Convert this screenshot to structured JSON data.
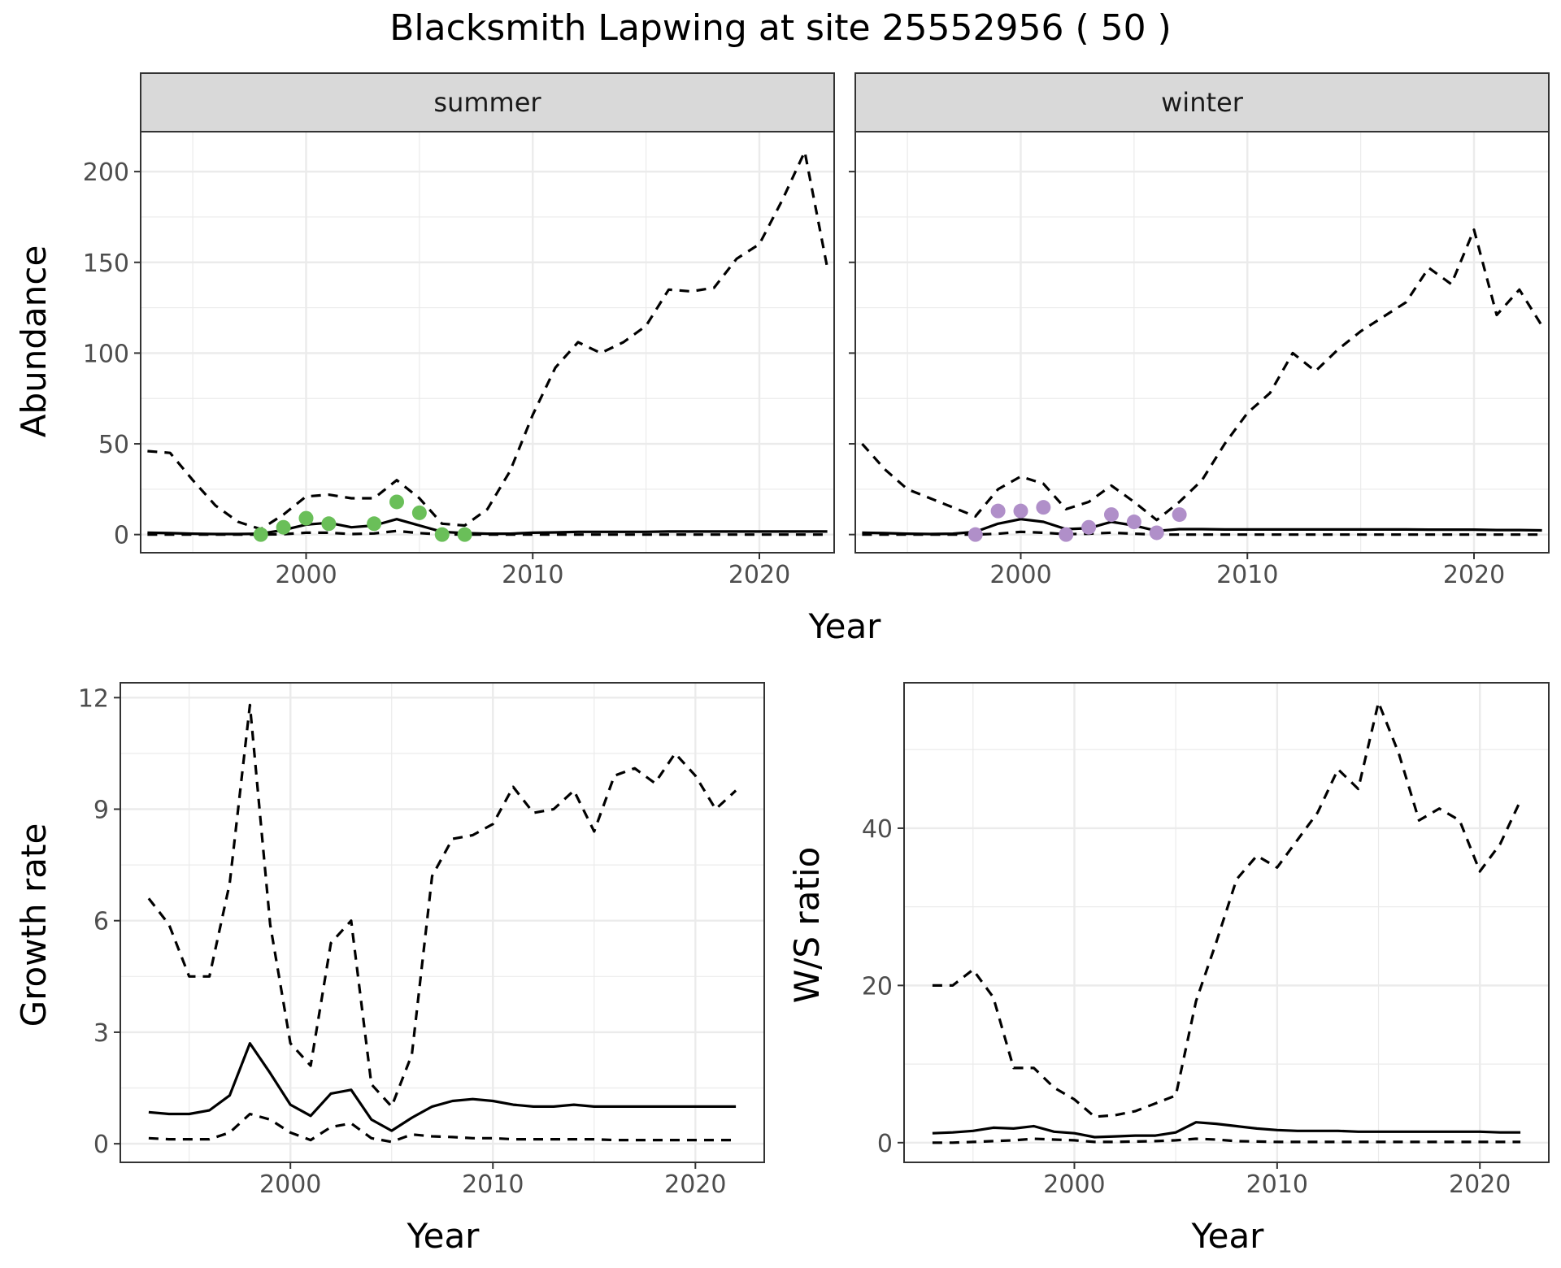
{
  "title": "Blacksmith Lapwing at site 25552956 ( 50 )",
  "colors": {
    "summer_points": "#6ABF59",
    "winter_points": "#B08FC9",
    "lines": "#000000",
    "grid": "#ebebeb",
    "strip": "#d9d9d9"
  },
  "chart_data": [
    {
      "type": "line",
      "panel": "summer",
      "facet_label": "summer",
      "xlabel": "Year",
      "ylabel": "Abundance",
      "xlim": [
        1992.7,
        2023.3
      ],
      "ylim": [
        -10,
        222
      ],
      "xticks": [
        2000,
        2010,
        2020
      ],
      "yticks": [
        0,
        50,
        100,
        150,
        200
      ],
      "grid": true,
      "series": [
        {
          "role": "mean",
          "style": "solid",
          "x": [
            1993,
            1994,
            1995,
            1996,
            1997,
            1998,
            1999,
            2000,
            2001,
            2002,
            2003,
            2004,
            2005,
            2006,
            2007,
            2008,
            2009,
            2010,
            2011,
            2012,
            2013,
            2014,
            2015,
            2016,
            2017,
            2018,
            2019,
            2020,
            2021,
            2022,
            2023
          ],
          "values": [
            1,
            0.8,
            0.5,
            0.3,
            0.3,
            0.5,
            2.5,
            5.5,
            6.5,
            4,
            5,
            8.5,
            5,
            1.5,
            0.8,
            0.5,
            0.5,
            1,
            1.2,
            1.5,
            1.5,
            1.5,
            1.5,
            1.7,
            1.7,
            1.7,
            1.7,
            1.7,
            1.7,
            1.7,
            1.7
          ]
        },
        {
          "role": "upper",
          "style": "dashed",
          "x": [
            1993,
            1994,
            1995,
            1996,
            1997,
            1998,
            1999,
            2000,
            2001,
            2002,
            2003,
            2004,
            2005,
            2006,
            2007,
            2008,
            2009,
            2010,
            2011,
            2012,
            2013,
            2014,
            2015,
            2016,
            2017,
            2018,
            2019,
            2020,
            2021,
            2022,
            2023
          ],
          "values": [
            46,
            45,
            30,
            16,
            7,
            3,
            11,
            21,
            22,
            20,
            20,
            30,
            20,
            6,
            5,
            14,
            35,
            66,
            92,
            106,
            100,
            106,
            115,
            135,
            134,
            136,
            152,
            160,
            184,
            211,
            147
          ]
        },
        {
          "role": "lower",
          "style": "dashed",
          "x": [
            1993,
            1994,
            1995,
            1996,
            1997,
            1998,
            1999,
            2000,
            2001,
            2002,
            2003,
            2004,
            2005,
            2006,
            2007,
            2008,
            2009,
            2010,
            2011,
            2012,
            2013,
            2014,
            2015,
            2016,
            2017,
            2018,
            2019,
            2020,
            2021,
            2022,
            2023
          ],
          "values": [
            0,
            0,
            0,
            0,
            0,
            0,
            0.2,
            1,
            1,
            0.3,
            0.6,
            2,
            0.8,
            0.1,
            0,
            0,
            0,
            0,
            0,
            0,
            0,
            0,
            0,
            0,
            0,
            0,
            0,
            0,
            0,
            0,
            0
          ]
        }
      ],
      "points": {
        "x": [
          1998,
          1999,
          2000,
          2001,
          2003,
          2004,
          2005,
          2006,
          2007
        ],
        "values": [
          0,
          4,
          9,
          6,
          6,
          18,
          12,
          0,
          0
        ]
      }
    },
    {
      "type": "line",
      "panel": "winter",
      "facet_label": "winter",
      "xlabel": "Year",
      "ylabel": "",
      "xlim": [
        1992.7,
        2023.3
      ],
      "ylim": [
        -10,
        222
      ],
      "xticks": [
        2000,
        2010,
        2020
      ],
      "yticks": [
        0,
        50,
        100,
        150,
        200
      ],
      "grid": true,
      "series": [
        {
          "role": "mean",
          "style": "solid",
          "x": [
            1993,
            1994,
            1995,
            1996,
            1997,
            1998,
            1999,
            2000,
            2001,
            2002,
            2003,
            2004,
            2005,
            2006,
            2007,
            2008,
            2009,
            2010,
            2011,
            2012,
            2013,
            2014,
            2015,
            2016,
            2017,
            2018,
            2019,
            2020,
            2021,
            2022,
            2023
          ],
          "values": [
            1,
            0.8,
            0.5,
            0.3,
            0.5,
            1.5,
            6,
            8.5,
            7,
            3,
            3.5,
            7,
            5,
            2,
            3,
            3,
            2.8,
            2.8,
            2.8,
            2.8,
            2.8,
            2.8,
            2.8,
            2.8,
            2.8,
            2.7,
            2.7,
            2.7,
            2.5,
            2.5,
            2.3
          ]
        },
        {
          "role": "upper",
          "style": "dashed",
          "x": [
            1993,
            1994,
            1995,
            1996,
            1997,
            1998,
            1999,
            2000,
            2001,
            2002,
            2003,
            2004,
            2005,
            2006,
            2007,
            2008,
            2009,
            2010,
            2011,
            2012,
            2013,
            2014,
            2015,
            2016,
            2017,
            2018,
            2019,
            2020,
            2021,
            2022,
            2023
          ],
          "values": [
            50,
            36,
            25,
            20,
            15,
            10,
            25,
            32,
            28,
            14,
            18,
            27,
            18,
            8,
            18,
            30,
            50,
            67,
            78,
            100,
            90,
            102,
            112,
            120,
            128,
            147,
            138,
            168,
            121,
            135,
            115
          ]
        },
        {
          "role": "lower",
          "style": "dashed",
          "x": [
            1993,
            1994,
            1995,
            1996,
            1997,
            1998,
            1999,
            2000,
            2001,
            2002,
            2003,
            2004,
            2005,
            2006,
            2007,
            2008,
            2009,
            2010,
            2011,
            2012,
            2013,
            2014,
            2015,
            2016,
            2017,
            2018,
            2019,
            2020,
            2021,
            2022,
            2023
          ],
          "values": [
            0,
            0,
            0,
            0,
            0,
            0,
            0.5,
            1.5,
            1,
            0.2,
            0.5,
            1,
            0.5,
            0,
            0,
            0,
            0,
            0,
            0,
            0,
            0,
            0,
            0,
            0,
            0,
            0,
            0,
            0,
            0,
            0,
            0
          ]
        }
      ],
      "points": {
        "x": [
          1998,
          1999,
          2000,
          2001,
          2002,
          2003,
          2004,
          2005,
          2006,
          2007
        ],
        "values": [
          0,
          13,
          13,
          15,
          0,
          4,
          11,
          7,
          1,
          11
        ]
      }
    },
    {
      "type": "line",
      "panel": "growth",
      "xlabel": "Year",
      "ylabel": "Growth rate",
      "xlim": [
        1991.6,
        2023.4
      ],
      "ylim": [
        -0.5,
        12.4
      ],
      "xticks": [
        2000,
        2010,
        2020
      ],
      "yticks": [
        0,
        3,
        6,
        9,
        12
      ],
      "grid": true,
      "series": [
        {
          "role": "mean",
          "style": "solid",
          "x": [
            1993,
            1994,
            1995,
            1996,
            1997,
            1998,
            1999,
            2000,
            2001,
            2002,
            2003,
            2004,
            2005,
            2006,
            2007,
            2008,
            2009,
            2010,
            2011,
            2012,
            2013,
            2014,
            2015,
            2016,
            2017,
            2018,
            2019,
            2020,
            2021,
            2022
          ],
          "values": [
            0.85,
            0.8,
            0.8,
            0.9,
            1.3,
            2.7,
            1.9,
            1.05,
            0.75,
            1.35,
            1.45,
            0.65,
            0.35,
            0.7,
            1.0,
            1.15,
            1.2,
            1.15,
            1.05,
            1.0,
            1.0,
            1.05,
            1.0,
            1.0,
            1.0,
            1.0,
            1.0,
            1.0,
            1.0,
            1.0
          ]
        },
        {
          "role": "upper",
          "style": "dashed",
          "x": [
            1993,
            1994,
            1995,
            1996,
            1997,
            1998,
            1999,
            2000,
            2001,
            2002,
            2003,
            2004,
            2005,
            2006,
            2007,
            2008,
            2009,
            2010,
            2011,
            2012,
            2013,
            2014,
            2015,
            2016,
            2017,
            2018,
            2019,
            2020,
            2021,
            2022
          ],
          "values": [
            6.6,
            5.9,
            4.5,
            4.5,
            7.0,
            11.8,
            5.9,
            2.7,
            2.1,
            5.4,
            6.0,
            1.6,
            1.0,
            2.4,
            7.2,
            8.2,
            8.3,
            8.6,
            9.6,
            8.9,
            9.0,
            9.5,
            8.4,
            9.9,
            10.1,
            9.7,
            10.5,
            9.9,
            9.0,
            9.5
          ]
        },
        {
          "role": "lower",
          "style": "dashed",
          "x": [
            1993,
            1994,
            1995,
            1996,
            1997,
            1998,
            1999,
            2000,
            2001,
            2002,
            2003,
            2004,
            2005,
            2006,
            2007,
            2008,
            2009,
            2010,
            2011,
            2012,
            2013,
            2014,
            2015,
            2016,
            2017,
            2018,
            2019,
            2020,
            2021,
            2022
          ],
          "values": [
            0.15,
            0.12,
            0.12,
            0.12,
            0.3,
            0.8,
            0.65,
            0.3,
            0.1,
            0.45,
            0.55,
            0.15,
            0.05,
            0.25,
            0.2,
            0.18,
            0.15,
            0.15,
            0.12,
            0.12,
            0.12,
            0.12,
            0.12,
            0.1,
            0.1,
            0.1,
            0.1,
            0.1,
            0.1,
            0.1
          ]
        }
      ]
    },
    {
      "type": "line",
      "panel": "ratio",
      "xlabel": "Year",
      "ylabel": "W/S ratio",
      "xlim": [
        1991.6,
        2023.4
      ],
      "ylim": [
        -2.5,
        58.5
      ],
      "xticks": [
        2000,
        2010,
        2020
      ],
      "yticks": [
        0,
        20,
        40
      ],
      "grid": true,
      "series": [
        {
          "role": "mean",
          "style": "solid",
          "x": [
            1993,
            1994,
            1995,
            1996,
            1997,
            1998,
            1999,
            2000,
            2001,
            2002,
            2003,
            2004,
            2005,
            2006,
            2007,
            2008,
            2009,
            2010,
            2011,
            2012,
            2013,
            2014,
            2015,
            2016,
            2017,
            2018,
            2019,
            2020,
            2021,
            2022
          ],
          "values": [
            1.2,
            1.3,
            1.5,
            1.9,
            1.8,
            2.1,
            1.4,
            1.2,
            0.7,
            0.8,
            0.9,
            0.9,
            1.3,
            2.6,
            2.4,
            2.1,
            1.8,
            1.6,
            1.5,
            1.5,
            1.5,
            1.4,
            1.4,
            1.4,
            1.4,
            1.4,
            1.4,
            1.4,
            1.3,
            1.3
          ]
        },
        {
          "role": "upper",
          "style": "dashed",
          "x": [
            1993,
            1994,
            1995,
            1996,
            1997,
            1998,
            1999,
            2000,
            2001,
            2002,
            2003,
            2004,
            2005,
            2006,
            2007,
            2008,
            2009,
            2010,
            2011,
            2012,
            2013,
            2014,
            2015,
            2016,
            2017,
            2018,
            2019,
            2020,
            2021,
            2022
          ],
          "values": [
            20,
            20,
            22,
            18.5,
            9.5,
            9.5,
            7,
            5.5,
            3.3,
            3.5,
            4,
            5,
            6,
            18,
            25.5,
            33.5,
            36.5,
            35,
            38.5,
            42,
            47.5,
            45,
            56,
            49.5,
            41,
            42.5,
            41,
            34.5,
            38,
            43.5
          ]
        },
        {
          "role": "lower",
          "style": "dashed",
          "x": [
            1993,
            1994,
            1995,
            1996,
            1997,
            1998,
            1999,
            2000,
            2001,
            2002,
            2003,
            2004,
            2005,
            2006,
            2007,
            2008,
            2009,
            2010,
            2011,
            2012,
            2013,
            2014,
            2015,
            2016,
            2017,
            2018,
            2019,
            2020,
            2021,
            2022
          ],
          "values": [
            0,
            0,
            0.1,
            0.2,
            0.3,
            0.5,
            0.4,
            0.3,
            0.1,
            0.1,
            0.15,
            0.2,
            0.3,
            0.5,
            0.4,
            0.2,
            0.15,
            0.1,
            0.1,
            0.1,
            0.1,
            0.1,
            0.1,
            0.1,
            0.1,
            0.1,
            0.1,
            0.1,
            0.1,
            0.1
          ]
        }
      ]
    }
  ]
}
